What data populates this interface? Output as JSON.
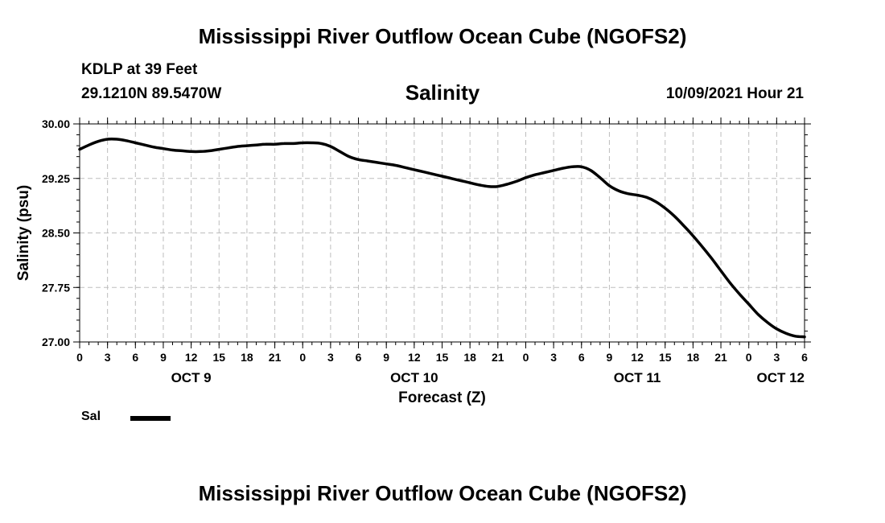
{
  "header": {
    "title": "Mississippi River Outflow Ocean Cube (NGOFS2)",
    "station": "KDLP at 39 Feet",
    "coordinates": "29.1210N  89.5470W",
    "parameter": "Salinity",
    "datetime": "10/09/2021 Hour 21"
  },
  "footer": {
    "title": "Mississippi River Outflow Ocean Cube (NGOFS2)"
  },
  "legend": {
    "label": "Sal",
    "color": "#000000"
  },
  "chart_data": {
    "type": "line",
    "title": "Salinity",
    "xlabel": "Forecast (Z)",
    "ylabel": "Salinity (psu)",
    "xlim": [
      0,
      78
    ],
    "ylim": [
      27.0,
      30.0
    ],
    "grid": true,
    "legend_position": "bottom-left",
    "y_ticks": [
      27.0,
      27.75,
      28.5,
      29.25,
      30.0
    ],
    "y_tick_labels": [
      "27.00",
      "27.75",
      "28.50",
      "29.25",
      "30.00"
    ],
    "x_ticks": [
      0,
      3,
      6,
      9,
      12,
      15,
      18,
      21,
      24,
      27,
      30,
      33,
      36,
      39,
      42,
      45,
      48,
      51,
      54,
      57,
      60,
      63,
      66,
      69,
      72,
      75,
      78
    ],
    "x_tick_labels": [
      "0",
      "3",
      "6",
      "9",
      "12",
      "15",
      "18",
      "21",
      "0",
      "3",
      "6",
      "9",
      "12",
      "15",
      "18",
      "21",
      "0",
      "3",
      "6",
      "9",
      "12",
      "15",
      "18",
      "21",
      "0",
      "3",
      "6"
    ],
    "day_labels": [
      {
        "hour": 12,
        "label": "OCT 9"
      },
      {
        "hour": 36,
        "label": "OCT 10"
      },
      {
        "hour": 60,
        "label": "OCT 11"
      },
      {
        "hour": 78,
        "label": "OCT 12"
      }
    ],
    "series": [
      {
        "name": "Sal",
        "color": "#000000",
        "x": [
          0,
          1,
          2,
          3,
          4,
          5,
          6,
          7,
          8,
          9,
          10,
          11,
          12,
          13,
          14,
          15,
          16,
          17,
          18,
          19,
          20,
          21,
          22,
          23,
          24,
          25,
          26,
          27,
          28,
          29,
          30,
          31,
          32,
          33,
          34,
          35,
          36,
          37,
          38,
          39,
          40,
          41,
          42,
          43,
          44,
          45,
          46,
          47,
          48,
          49,
          50,
          51,
          52,
          53,
          54,
          55,
          56,
          57,
          58,
          59,
          60,
          61,
          62,
          63,
          64,
          65,
          66,
          67,
          68,
          69,
          70,
          71,
          72,
          73,
          74,
          75,
          76,
          77,
          78
        ],
        "values": [
          29.65,
          29.71,
          29.76,
          29.79,
          29.79,
          29.77,
          29.74,
          29.71,
          29.68,
          29.66,
          29.64,
          29.63,
          29.62,
          29.62,
          29.63,
          29.65,
          29.67,
          29.69,
          29.7,
          29.71,
          29.72,
          29.72,
          29.73,
          29.73,
          29.74,
          29.74,
          29.73,
          29.69,
          29.62,
          29.55,
          29.51,
          29.49,
          29.47,
          29.45,
          29.43,
          29.4,
          29.37,
          29.34,
          29.31,
          29.28,
          29.25,
          29.22,
          29.19,
          29.16,
          29.14,
          29.14,
          29.17,
          29.21,
          29.26,
          29.3,
          29.33,
          29.36,
          29.39,
          29.41,
          29.41,
          29.36,
          29.26,
          29.15,
          29.08,
          29.04,
          29.02,
          28.99,
          28.93,
          28.84,
          28.73,
          28.6,
          28.46,
          28.31,
          28.15,
          27.98,
          27.81,
          27.66,
          27.52,
          27.38,
          27.27,
          27.18,
          27.12,
          27.08,
          27.07
        ]
      }
    ]
  }
}
